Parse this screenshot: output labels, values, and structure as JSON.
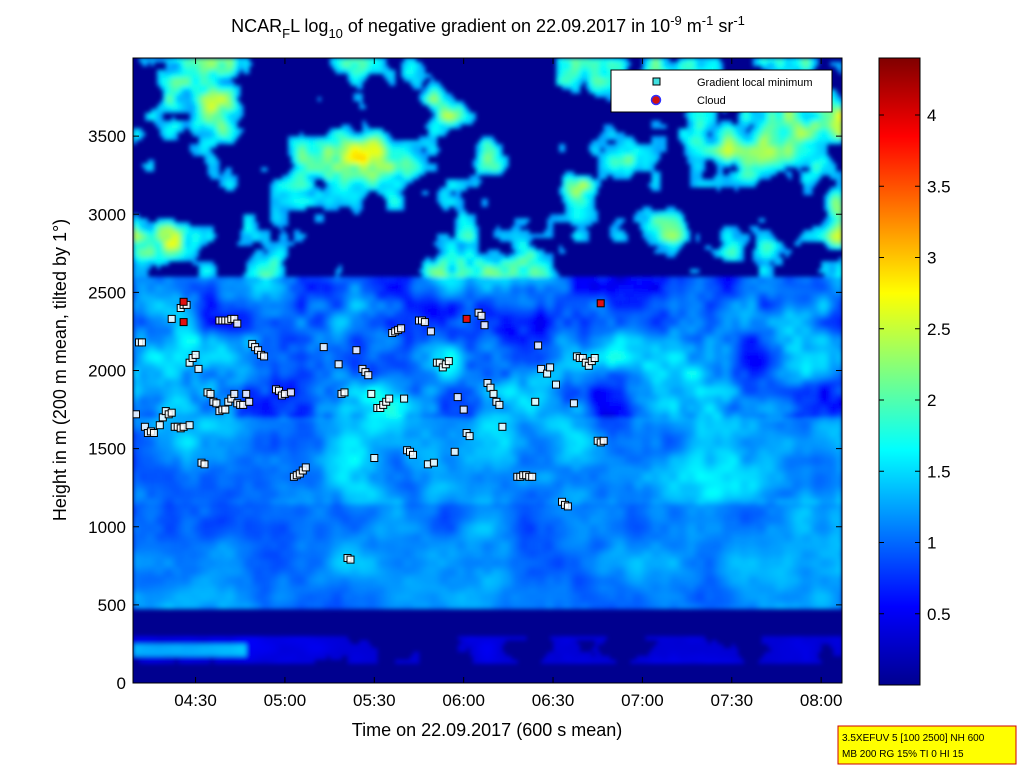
{
  "chart_data": {
    "type": "heatmap",
    "title": {
      "prefix": "NCAR",
      "subscript_1": "F",
      "part_2": "L log",
      "subscript_2": "10",
      "part_3": " of negative gradient on 22.09.2017 in 10",
      "sup_1": "-9",
      "part_4": " m",
      "sup_2": "-1",
      "part_5": " sr",
      "sup_3": "-1"
    },
    "xlabel": "Time on 22.09.2017 (600 s mean)",
    "ylabel": "Height in m (200 m mean, tilted by 1°)",
    "x_ticks": [
      "04:30",
      "05:00",
      "05:30",
      "06:00",
      "06:30",
      "07:00",
      "07:30",
      "08:00"
    ],
    "x_tick_minutes": [
      270,
      300,
      330,
      360,
      390,
      420,
      450,
      480
    ],
    "xlim_minutes": [
      249,
      487
    ],
    "y_ticks": [
      0,
      500,
      1000,
      1500,
      2000,
      2500,
      3000,
      3500
    ],
    "ylim": [
      0,
      4000
    ],
    "colorbar": {
      "ticks": [
        0.5,
        1,
        1.5,
        2,
        2.5,
        3,
        3.5,
        4
      ],
      "tick_labels": [
        "0.5",
        "1",
        "1.5",
        "2",
        "2.5",
        "3",
        "3.5",
        "4"
      ],
      "range": [
        0,
        4.4
      ],
      "colormap": "jet"
    },
    "legend": {
      "position": "top-right",
      "entries": [
        {
          "label": "Gradient local minimum",
          "marker": "square",
          "color": "#40e0e0"
        },
        {
          "label": "Cloud",
          "marker": "circle",
          "color": "#d01010"
        }
      ]
    },
    "gradient_minima": [
      [
        250,
        1720
      ],
      [
        251,
        2180
      ],
      [
        252,
        2180
      ],
      [
        253,
        1640
      ],
      [
        254,
        1600
      ],
      [
        255,
        1610
      ],
      [
        256,
        1600
      ],
      [
        258,
        1650
      ],
      [
        259,
        1700
      ],
      [
        260,
        1740
      ],
      [
        261,
        1720
      ],
      [
        262,
        1730
      ],
      [
        263,
        1640
      ],
      [
        264,
        1640
      ],
      [
        265,
        1630
      ],
      [
        266,
        1640
      ],
      [
        268,
        1650
      ],
      [
        262,
        2330
      ],
      [
        265,
        2400
      ],
      [
        266,
        2420
      ],
      [
        267,
        2420
      ],
      [
        268,
        2050
      ],
      [
        269,
        2080
      ],
      [
        270,
        2100
      ],
      [
        271,
        2010
      ],
      [
        272,
        1410
      ],
      [
        273,
        1400
      ],
      [
        274,
        1860
      ],
      [
        275,
        1850
      ],
      [
        276,
        1800
      ],
      [
        277,
        1790
      ],
      [
        278,
        1740
      ],
      [
        279,
        1750
      ],
      [
        280,
        1750
      ],
      [
        281,
        1800
      ],
      [
        282,
        1820
      ],
      [
        283,
        1850
      ],
      [
        284,
        1790
      ],
      [
        285,
        1780
      ],
      [
        286,
        1780
      ],
      [
        287,
        1850
      ],
      [
        288,
        1800
      ],
      [
        278,
        2320
      ],
      [
        279,
        2320
      ],
      [
        280,
        2320
      ],
      [
        281,
        2320
      ],
      [
        282,
        2330
      ],
      [
        283,
        2330
      ],
      [
        284,
        2300
      ],
      [
        289,
        2170
      ],
      [
        290,
        2150
      ],
      [
        291,
        2130
      ],
      [
        292,
        2100
      ],
      [
        293,
        2090
      ],
      [
        297,
        1880
      ],
      [
        298,
        1870
      ],
      [
        299,
        1840
      ],
      [
        300,
        1850
      ],
      [
        302,
        1860
      ],
      [
        303,
        1320
      ],
      [
        304,
        1330
      ],
      [
        305,
        1340
      ],
      [
        306,
        1360
      ],
      [
        307,
        1380
      ],
      [
        313,
        2150
      ],
      [
        318,
        2040
      ],
      [
        319,
        1850
      ],
      [
        320,
        1860
      ],
      [
        321,
        800
      ],
      [
        322,
        790
      ],
      [
        324,
        2130
      ],
      [
        326,
        2010
      ],
      [
        327,
        1990
      ],
      [
        328,
        1970
      ],
      [
        329,
        1850
      ],
      [
        330,
        1440
      ],
      [
        331,
        1760
      ],
      [
        332,
        1760
      ],
      [
        333,
        1780
      ],
      [
        334,
        1800
      ],
      [
        335,
        1820
      ],
      [
        336,
        2240
      ],
      [
        337,
        2250
      ],
      [
        338,
        2260
      ],
      [
        339,
        2270
      ],
      [
        340,
        1820
      ],
      [
        341,
        1490
      ],
      [
        342,
        1480
      ],
      [
        343,
        1460
      ],
      [
        345,
        2320
      ],
      [
        346,
        2320
      ],
      [
        347,
        2310
      ],
      [
        348,
        1400
      ],
      [
        349,
        2250
      ],
      [
        350,
        1410
      ],
      [
        351,
        2050
      ],
      [
        352,
        2050
      ],
      [
        353,
        2020
      ],
      [
        354,
        2040
      ],
      [
        355,
        2060
      ],
      [
        357,
        1480
      ],
      [
        358,
        1830
      ],
      [
        360,
        1750
      ],
      [
        361,
        1600
      ],
      [
        362,
        1580
      ],
      [
        365,
        2370
      ],
      [
        366,
        2350
      ],
      [
        367,
        2290
      ],
      [
        368,
        1920
      ],
      [
        369,
        1890
      ],
      [
        370,
        1850
      ],
      [
        371,
        1800
      ],
      [
        372,
        1780
      ],
      [
        373,
        1640
      ],
      [
        378,
        1320
      ],
      [
        379,
        1320
      ],
      [
        380,
        1330
      ],
      [
        381,
        1330
      ],
      [
        382,
        1320
      ],
      [
        383,
        1320
      ],
      [
        384,
        1800
      ],
      [
        385,
        2160
      ],
      [
        386,
        2010
      ],
      [
        388,
        1980
      ],
      [
        389,
        2020
      ],
      [
        391,
        1910
      ],
      [
        398,
        2090
      ],
      [
        399,
        2080
      ],
      [
        400,
        2080
      ],
      [
        401,
        2050
      ],
      [
        402,
        2030
      ],
      [
        403,
        2060
      ],
      [
        404,
        2080
      ],
      [
        405,
        1550
      ],
      [
        406,
        1540
      ],
      [
        407,
        1550
      ],
      [
        393,
        1160
      ],
      [
        394,
        1140
      ],
      [
        395,
        1130
      ],
      [
        397,
        1790
      ]
    ],
    "clouds": [
      [
        266,
        2440
      ],
      [
        266,
        2310
      ],
      [
        361,
        2330
      ],
      [
        406,
        2430
      ]
    ]
  },
  "info_box": {
    "line1": "3.5XEFUV 5 [100 2500] NH 600",
    "line2": "MB 200 RG 15% TI 0 HI 15"
  }
}
